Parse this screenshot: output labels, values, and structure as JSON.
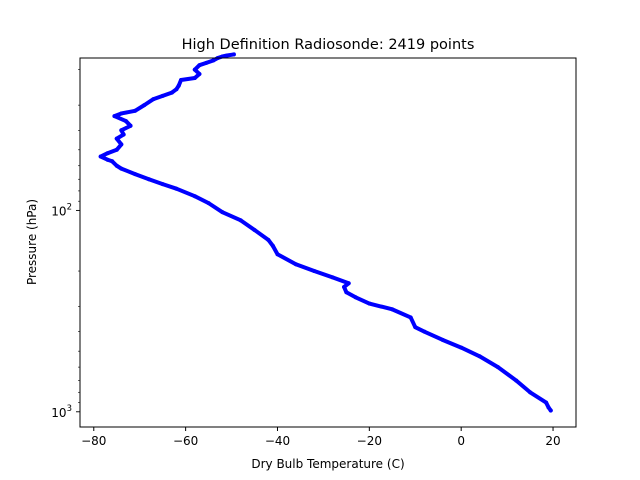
{
  "chart_data": {
    "type": "line",
    "title": "High Definition Radiosonde: 2419 points",
    "xlabel": "Dry Bulb Temperature (C)",
    "ylabel": "Pressure (hPa)",
    "xlim": [
      -83,
      25
    ],
    "ylim": [
      1190,
      17.5
    ],
    "yscale": "log",
    "grid": false,
    "x_ticks": [
      -80,
      -60,
      -40,
      -20,
      0,
      20
    ],
    "x_tick_labels": [
      "−80",
      "−60",
      "−40",
      "−20",
      "0",
      "20"
    ],
    "y_ticks": [
      {
        "value": 100,
        "base": "10",
        "exp": "2"
      },
      {
        "value": 1000,
        "base": "10",
        "exp": "3"
      }
    ],
    "series": [
      {
        "color": "#0000ff",
        "x": [
          19.5,
          19.0,
          18.5,
          15.0,
          12.0,
          8.0,
          4.0,
          0.0,
          -4.0,
          -8.0,
          -10.0,
          -11.0,
          -15.0,
          -20.0,
          -23.0,
          -25.0,
          -25.5,
          -24.5,
          -28.0,
          -32.0,
          -36.0,
          -40.0,
          -41.0,
          -42.0,
          -45.0,
          -48.0,
          -52.0,
          -55.0,
          -58.0,
          -62.0,
          -65.0,
          -68.0,
          -71.0,
          -74.0,
          -75.0,
          -76.0,
          -77.0,
          -78.5,
          -77.0,
          -75.0,
          -74.0,
          -75.0,
          -73.5,
          -74.0,
          -72.0,
          -73.0,
          -75.5,
          -74.0,
          -71.0,
          -69.0,
          -67.0,
          -65.0,
          -63.0,
          -62.0,
          -61.5,
          -61.0,
          -58.0,
          -57.0,
          -58.0,
          -57.0,
          -55.5,
          -54.0,
          -53.0,
          -52.0,
          -51.0,
          -49.5
        ],
        "y": [
          985,
          950,
          900,
          800,
          700,
          600,
          530,
          480,
          440,
          400,
          380,
          340,
          310,
          290,
          270,
          255,
          240,
          230,
          215,
          200,
          185,
          165,
          150,
          140,
          125,
          112,
          102,
          92,
          85,
          78,
          74,
          70,
          66,
          62,
          60,
          57,
          56,
          54,
          52,
          50,
          47,
          44,
          42,
          40,
          38,
          36,
          34,
          33,
          32,
          30,
          28,
          27,
          26,
          25,
          24,
          22.5,
          22,
          21,
          20,
          19,
          18.5,
          18,
          17.5,
          17.2,
          17.0,
          16.8
        ]
      }
    ]
  }
}
